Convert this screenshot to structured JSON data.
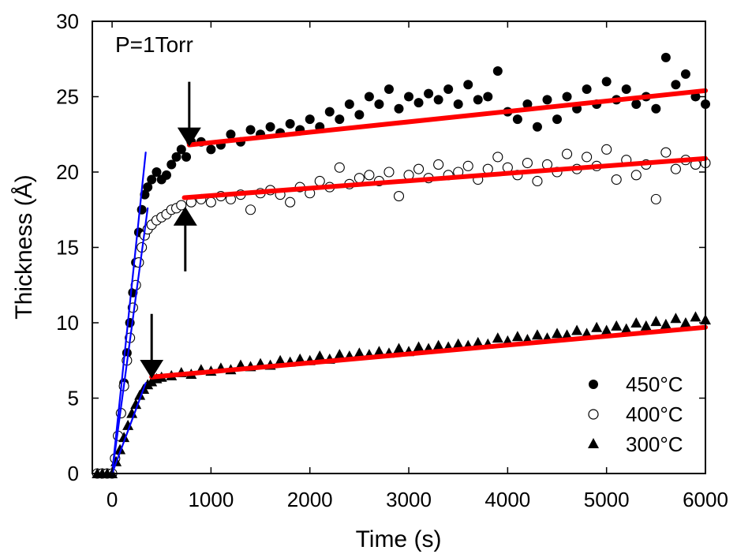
{
  "chart_data": {
    "type": "scatter",
    "title": "",
    "xlabel": "Time (s)",
    "ylabel": "Thickness (Å)",
    "xlim": [
      -200,
      6000
    ],
    "ylim": [
      0,
      30
    ],
    "xticks": [
      0,
      1000,
      2000,
      3000,
      4000,
      5000,
      6000
    ],
    "yticks": [
      0,
      5,
      10,
      15,
      20,
      25,
      30
    ],
    "grid": false,
    "legend_position": "bottom-right",
    "annotation": "P=1Torr",
    "series": [
      {
        "name": "450°C",
        "marker": "filled-circle",
        "points": [
          [
            -150,
            0
          ],
          [
            -100,
            0
          ],
          [
            -50,
            0
          ],
          [
            0,
            0
          ],
          [
            30,
            1
          ],
          [
            60,
            2.5
          ],
          [
            90,
            4
          ],
          [
            120,
            6
          ],
          [
            150,
            8
          ],
          [
            180,
            10
          ],
          [
            210,
            12
          ],
          [
            240,
            14
          ],
          [
            270,
            16
          ],
          [
            300,
            17.5
          ],
          [
            330,
            18.5
          ],
          [
            360,
            19
          ],
          [
            400,
            19.5
          ],
          [
            450,
            20
          ],
          [
            500,
            19.5
          ],
          [
            550,
            19.8
          ],
          [
            600,
            20.5
          ],
          [
            650,
            21
          ],
          [
            700,
            21.5
          ],
          [
            750,
            21
          ],
          [
            800,
            22
          ],
          [
            900,
            22
          ],
          [
            1000,
            21.5
          ],
          [
            1100,
            21.8
          ],
          [
            1200,
            22.5
          ],
          [
            1300,
            22
          ],
          [
            1400,
            22.8
          ],
          [
            1500,
            22.5
          ],
          [
            1600,
            23
          ],
          [
            1700,
            22.6
          ],
          [
            1800,
            23.2
          ],
          [
            1900,
            22.8
          ],
          [
            2000,
            23.5
          ],
          [
            2100,
            23
          ],
          [
            2200,
            24
          ],
          [
            2300,
            23.5
          ],
          [
            2400,
            24.5
          ],
          [
            2500,
            23.8
          ],
          [
            2600,
            25
          ],
          [
            2700,
            24.5
          ],
          [
            2800,
            25.5
          ],
          [
            2900,
            24.2
          ],
          [
            3000,
            25
          ],
          [
            3100,
            24.6
          ],
          [
            3200,
            25.2
          ],
          [
            3300,
            24.8
          ],
          [
            3400,
            25.5
          ],
          [
            3500,
            24.5
          ],
          [
            3600,
            25.8
          ],
          [
            3700,
            24.8
          ],
          [
            3800,
            25
          ],
          [
            3900,
            26.7
          ],
          [
            4000,
            24
          ],
          [
            4100,
            23.5
          ],
          [
            4200,
            24.5
          ],
          [
            4300,
            23
          ],
          [
            4400,
            24.8
          ],
          [
            4500,
            23.5
          ],
          [
            4600,
            25
          ],
          [
            4700,
            24.2
          ],
          [
            4800,
            25.5
          ],
          [
            4900,
            24.5
          ],
          [
            5000,
            26
          ],
          [
            5100,
            24.8
          ],
          [
            5200,
            25.5
          ],
          [
            5300,
            24.5
          ],
          [
            5400,
            25
          ],
          [
            5500,
            24.2
          ],
          [
            5600,
            27.6
          ],
          [
            5700,
            25.8
          ],
          [
            5800,
            26.5
          ],
          [
            5900,
            25
          ],
          [
            6000,
            24.5
          ]
        ]
      },
      {
        "name": "400°C",
        "marker": "open-circle",
        "points": [
          [
            -150,
            0
          ],
          [
            -100,
            0
          ],
          [
            -50,
            0
          ],
          [
            0,
            0
          ],
          [
            30,
            1
          ],
          [
            60,
            2.5
          ],
          [
            90,
            4
          ],
          [
            120,
            5.8
          ],
          [
            150,
            7.5
          ],
          [
            180,
            9
          ],
          [
            210,
            11
          ],
          [
            240,
            12.5
          ],
          [
            270,
            14
          ],
          [
            300,
            15
          ],
          [
            330,
            15.8
          ],
          [
            360,
            16.2
          ],
          [
            400,
            16.5
          ],
          [
            450,
            16.8
          ],
          [
            500,
            17
          ],
          [
            550,
            17.2
          ],
          [
            600,
            17.5
          ],
          [
            650,
            17.6
          ],
          [
            700,
            17.8
          ],
          [
            800,
            18
          ],
          [
            900,
            18.2
          ],
          [
            1000,
            18
          ],
          [
            1100,
            18.4
          ],
          [
            1200,
            18.2
          ],
          [
            1300,
            18.5
          ],
          [
            1400,
            17.5
          ],
          [
            1500,
            18.6
          ],
          [
            1600,
            18.8
          ],
          [
            1700,
            18.5
          ],
          [
            1800,
            18
          ],
          [
            1900,
            19
          ],
          [
            2000,
            18.6
          ],
          [
            2100,
            19.4
          ],
          [
            2200,
            19
          ],
          [
            2300,
            20.3
          ],
          [
            2400,
            19.2
          ],
          [
            2500,
            19.6
          ],
          [
            2600,
            19.8
          ],
          [
            2700,
            19.4
          ],
          [
            2800,
            20
          ],
          [
            2900,
            18.4
          ],
          [
            3000,
            19.8
          ],
          [
            3100,
            20.2
          ],
          [
            3200,
            19.6
          ],
          [
            3300,
            20.5
          ],
          [
            3400,
            19.8
          ],
          [
            3500,
            20
          ],
          [
            3600,
            20.4
          ],
          [
            3700,
            19.5
          ],
          [
            3800,
            20.2
          ],
          [
            3900,
            21
          ],
          [
            4000,
            20.3
          ],
          [
            4100,
            19.8
          ],
          [
            4200,
            20.6
          ],
          [
            4300,
            19.4
          ],
          [
            4400,
            20.5
          ],
          [
            4500,
            20
          ],
          [
            4600,
            21.2
          ],
          [
            4700,
            20.2
          ],
          [
            4800,
            21
          ],
          [
            4900,
            20.4
          ],
          [
            5000,
            21.5
          ],
          [
            5100,
            19.5
          ],
          [
            5200,
            20.8
          ],
          [
            5300,
            19.8
          ],
          [
            5400,
            20.5
          ],
          [
            5500,
            18.2
          ],
          [
            5600,
            21.3
          ],
          [
            5700,
            20.2
          ],
          [
            5800,
            20.8
          ],
          [
            5900,
            20.5
          ],
          [
            6000,
            20.6
          ]
        ]
      },
      {
        "name": "300°C",
        "marker": "filled-triangle",
        "points": [
          [
            -150,
            0
          ],
          [
            -100,
            0
          ],
          [
            -50,
            0
          ],
          [
            0,
            0
          ],
          [
            40,
            0.8
          ],
          [
            80,
            1.6
          ],
          [
            120,
            2.4
          ],
          [
            160,
            3.2
          ],
          [
            200,
            4
          ],
          [
            240,
            4.6
          ],
          [
            280,
            5.2
          ],
          [
            320,
            5.6
          ],
          [
            360,
            5.9
          ],
          [
            400,
            6.1
          ],
          [
            450,
            6.3
          ],
          [
            500,
            6.4
          ],
          [
            600,
            6.5
          ],
          [
            700,
            6.7
          ],
          [
            800,
            6.6
          ],
          [
            900,
            6.9
          ],
          [
            1000,
            6.8
          ],
          [
            1100,
            7
          ],
          [
            1200,
            6.9
          ],
          [
            1300,
            7.2
          ],
          [
            1400,
            7.1
          ],
          [
            1500,
            7.3
          ],
          [
            1600,
            7.2
          ],
          [
            1700,
            7.5
          ],
          [
            1800,
            7.4
          ],
          [
            1900,
            7.6
          ],
          [
            2000,
            7.5
          ],
          [
            2100,
            7.8
          ],
          [
            2200,
            7.6
          ],
          [
            2300,
            7.9
          ],
          [
            2400,
            7.8
          ],
          [
            2500,
            8
          ],
          [
            2600,
            7.9
          ],
          [
            2700,
            8.1
          ],
          [
            2800,
            8
          ],
          [
            2900,
            8.3
          ],
          [
            3000,
            8.1
          ],
          [
            3100,
            8.4
          ],
          [
            3200,
            8.3
          ],
          [
            3300,
            8.5
          ],
          [
            3400,
            8.4
          ],
          [
            3500,
            8.6
          ],
          [
            3600,
            8.5
          ],
          [
            3700,
            8.7
          ],
          [
            3800,
            8.6
          ],
          [
            3900,
            9
          ],
          [
            4000,
            8.8
          ],
          [
            4100,
            9.1
          ],
          [
            4200,
            8.9
          ],
          [
            4300,
            9.2
          ],
          [
            4400,
            9
          ],
          [
            4500,
            9.3
          ],
          [
            4600,
            9.2
          ],
          [
            4700,
            9.5
          ],
          [
            4800,
            9.3
          ],
          [
            4900,
            9.7
          ],
          [
            5000,
            9.5
          ],
          [
            5100,
            9.8
          ],
          [
            5200,
            9.6
          ],
          [
            5300,
            10
          ],
          [
            5400,
            9.8
          ],
          [
            5500,
            10.1
          ],
          [
            5600,
            9.9
          ],
          [
            5700,
            10.3
          ],
          [
            5800,
            10
          ],
          [
            5900,
            10.4
          ],
          [
            6000,
            10.2
          ]
        ]
      }
    ],
    "fit_lines": [
      {
        "color": "#ff0000",
        "from": [
          780,
          21.8
        ],
        "to": [
          6000,
          25.4
        ]
      },
      {
        "color": "#ff0000",
        "from": [
          730,
          18.3
        ],
        "to": [
          6000,
          20.9
        ]
      },
      {
        "color": "#ff0000",
        "from": [
          400,
          6.4
        ],
        "to": [
          6000,
          9.7
        ]
      },
      {
        "color": "#0000ff",
        "from": [
          0,
          0
        ],
        "to": [
          340,
          21.3
        ]
      },
      {
        "color": "#0000ff",
        "from": [
          0,
          0
        ],
        "to": [
          360,
          17.6
        ]
      },
      {
        "color": "#0000ff",
        "from": [
          0,
          0
        ],
        "to": [
          340,
          6.0
        ]
      }
    ],
    "arrows": [
      {
        "at": [
          780,
          21.8
        ],
        "direction": "down"
      },
      {
        "at": [
          740,
          17.6
        ],
        "direction": "up"
      },
      {
        "at": [
          400,
          6.4
        ],
        "direction": "down"
      }
    ]
  }
}
